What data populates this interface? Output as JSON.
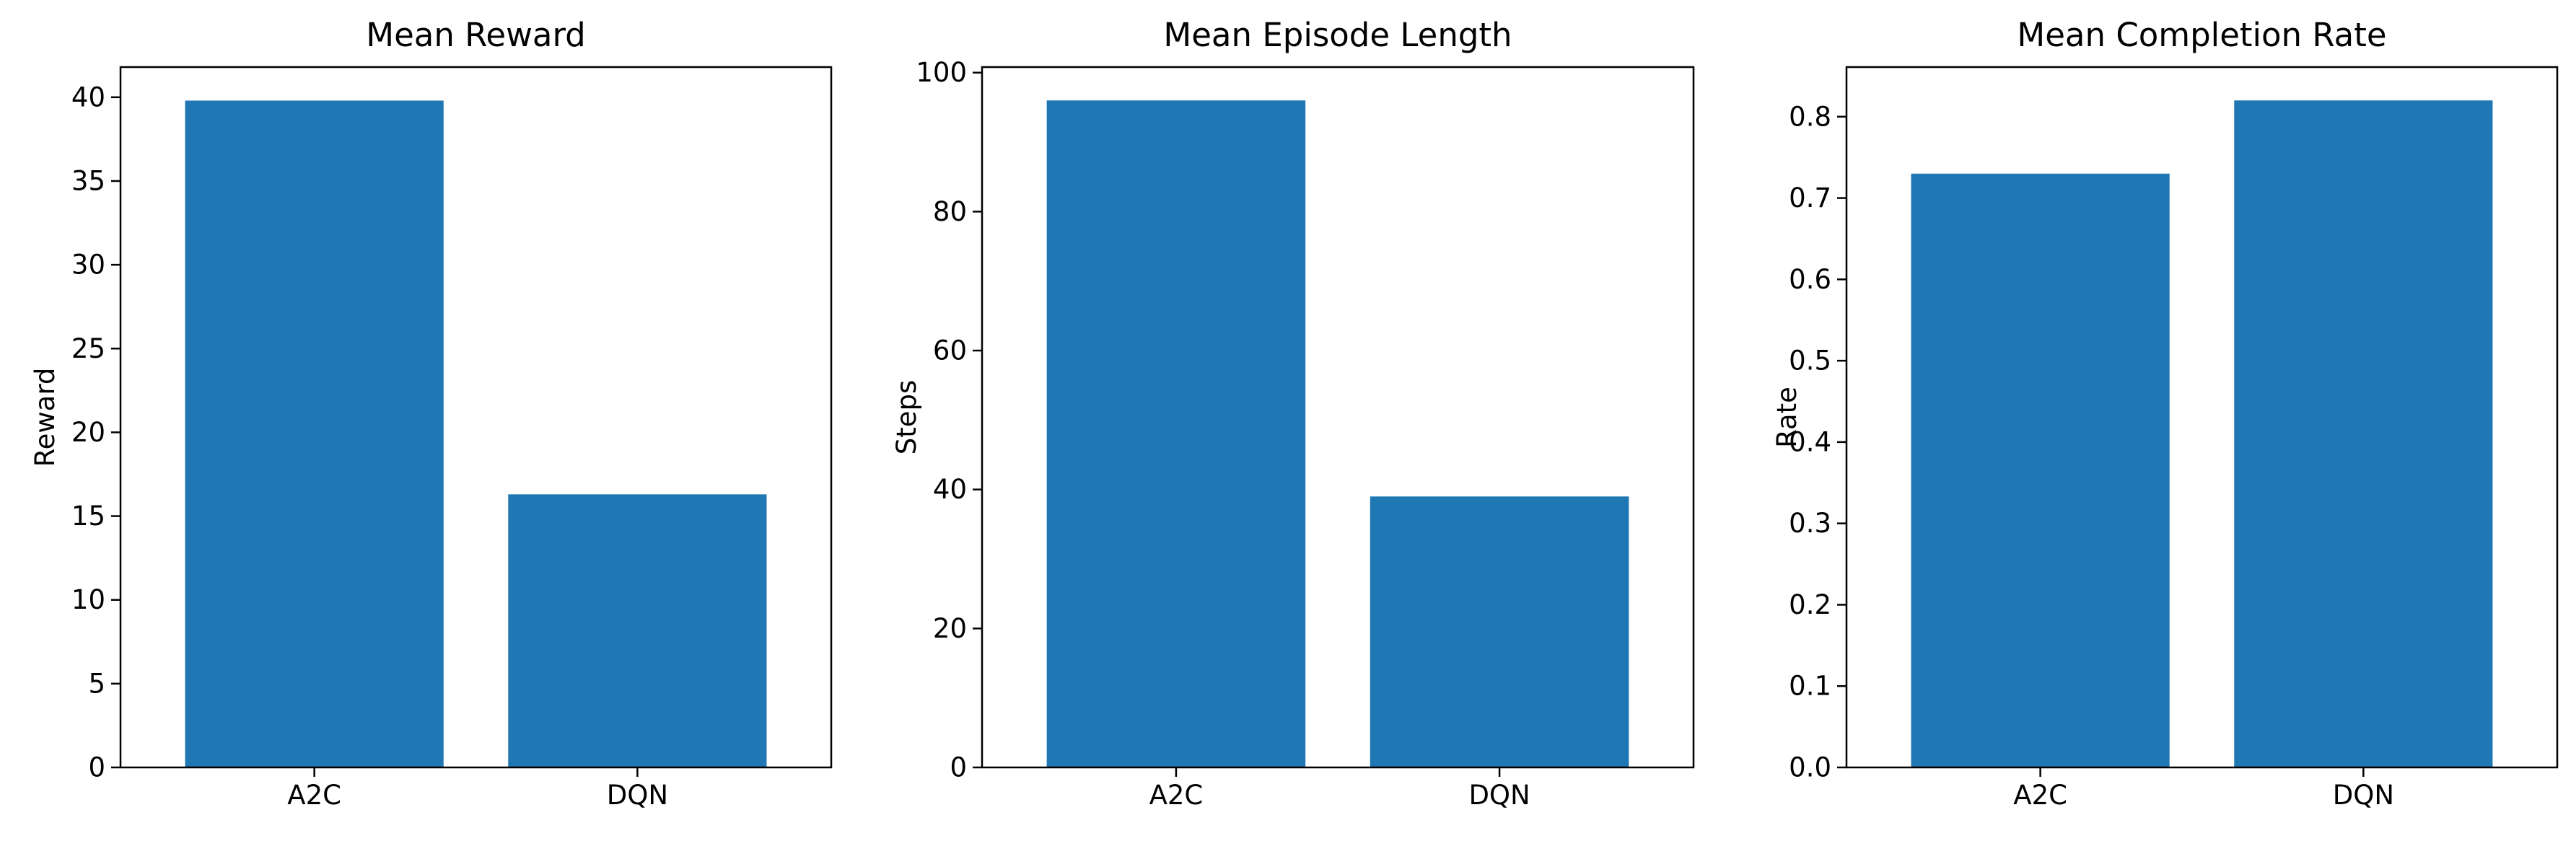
{
  "chart_data": [
    {
      "type": "bar",
      "title": "Mean Reward",
      "xlabel": "",
      "ylabel": "Reward",
      "categories": [
        "A2C",
        "DQN"
      ],
      "values": [
        39.8,
        16.3
      ],
      "ylim": [
        0,
        41.8
      ],
      "yticks": [
        0,
        5,
        10,
        15,
        20,
        25,
        30,
        35,
        40
      ],
      "ytick_labels": [
        "0",
        "5",
        "10",
        "15",
        "20",
        "25",
        "30",
        "35",
        "40"
      ],
      "color": "#1f77b4",
      "grid": false
    },
    {
      "type": "bar",
      "title": "Mean Episode Length",
      "xlabel": "",
      "ylabel": "Steps",
      "categories": [
        "A2C",
        "DQN"
      ],
      "values": [
        96,
        39
      ],
      "ylim": [
        0,
        100.8
      ],
      "yticks": [
        0,
        20,
        40,
        60,
        80,
        100
      ],
      "ytick_labels": [
        "0",
        "20",
        "40",
        "60",
        "80",
        "100"
      ],
      "color": "#1f77b4",
      "grid": false
    },
    {
      "type": "bar",
      "title": "Mean Completion Rate",
      "xlabel": "",
      "ylabel": "Rate",
      "categories": [
        "A2C",
        "DQN"
      ],
      "values": [
        0.73,
        0.82
      ],
      "ylim": [
        0,
        0.861
      ],
      "yticks": [
        0,
        0.1,
        0.2,
        0.3,
        0.4,
        0.5,
        0.6,
        0.7,
        0.8
      ],
      "ytick_labels": [
        "0.0",
        "0.1",
        "0.2",
        "0.3",
        "0.4",
        "0.5",
        "0.6",
        "0.7",
        "0.8"
      ],
      "color": "#1f77b4",
      "grid": false
    }
  ]
}
